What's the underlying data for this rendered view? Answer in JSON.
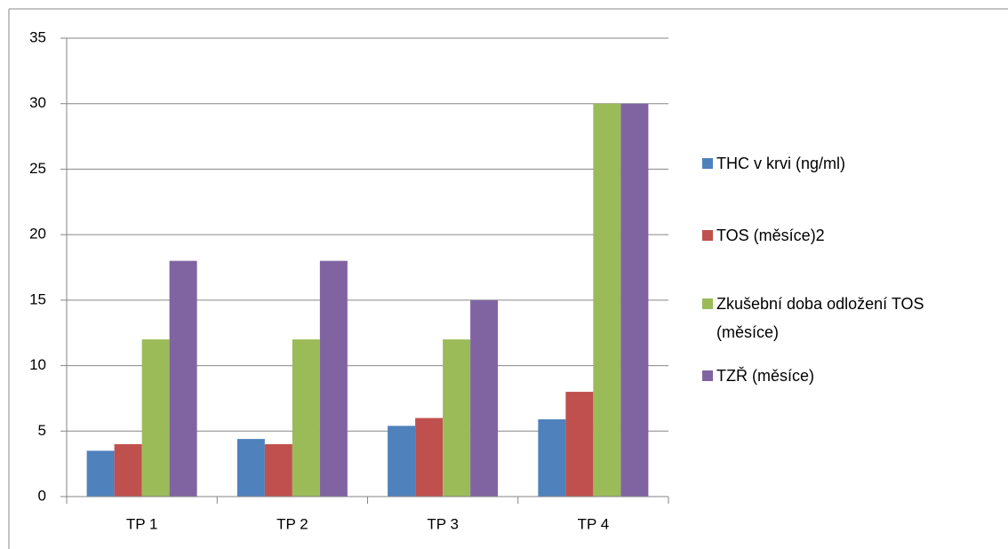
{
  "chart_data": {
    "type": "bar",
    "categories": [
      "TP 1",
      "TP 2",
      "TP 3",
      "TP 4"
    ],
    "series": [
      {
        "name": "THC v krvi (ng/ml)",
        "color": "#4f81bd",
        "values": [
          3.5,
          4.4,
          5.4,
          5.9
        ]
      },
      {
        "name": "TOS (měsíce)2",
        "color": "#c0504d",
        "values": [
          4,
          4,
          6,
          8
        ]
      },
      {
        "name": "Zkušební doba odložení TOS (měsíce)",
        "color": "#9bbb59",
        "values": [
          12,
          12,
          12,
          30
        ]
      },
      {
        "name": "TZŘ (měsíce)",
        "color": "#8064a2",
        "values": [
          18,
          18,
          15,
          30
        ]
      }
    ],
    "ylim": [
      0,
      35
    ],
    "yticks": [
      0,
      5,
      10,
      15,
      20,
      25,
      30,
      35
    ],
    "grid": true,
    "legend": "right"
  }
}
